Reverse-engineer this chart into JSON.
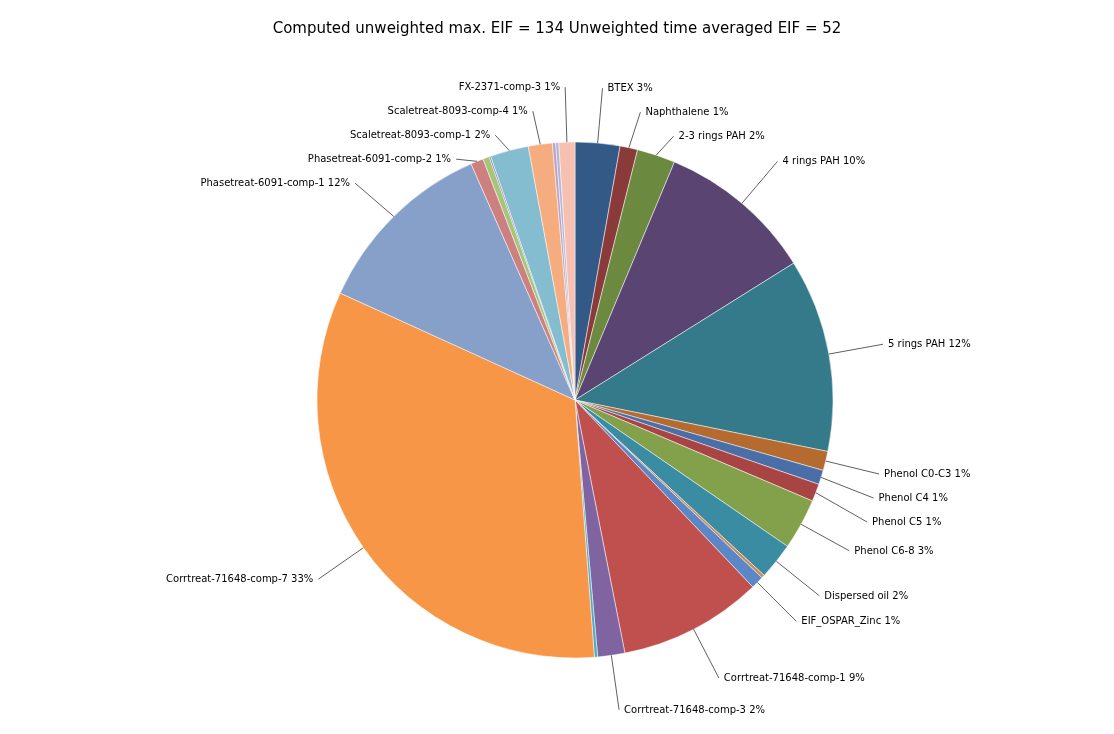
{
  "chart_data": {
    "type": "pie",
    "title": "Computed unweighted max. EIF = 134      Unweighted time averaged EIF = 52",
    "categories": [
      "BTEX",
      "Naphthalene",
      "2-3 rings PAH",
      "4 rings PAH",
      "5 rings PAH",
      "Phenol C0-C3",
      "Phenol C4",
      "Phenol C5",
      "Phenol C6-8",
      "Dispersed oil",
      null,
      "EIF_OSPAR_Zinc",
      "Corrtreat-71648-comp-1",
      "Corrtreat-71648-comp-3",
      null,
      "Corrtreat-71648-comp-7",
      "Phasetreat-6091-comp-1",
      "Phasetreat-6091-comp-2",
      null,
      null,
      "Scaletreat-8093-comp-1",
      "Scaletreat-8093-comp-4",
      null,
      null,
      "FX-2371-comp-3"
    ],
    "values": [
      2.8,
      1.1,
      2.4,
      9.8,
      12.1,
      1.2,
      0.9,
      1.1,
      3.2,
      2.3,
      0.2,
      0.8,
      9.0,
      1.7,
      0.2,
      33.0,
      11.6,
      0.8,
      0.4,
      0.1,
      2.4,
      1.5,
      0.2,
      0.2,
      1.0
    ],
    "value_labels": [
      "3%",
      "1%",
      "2%",
      "10%",
      "12%",
      "1%",
      "1%",
      "1%",
      "3%",
      "2%",
      null,
      "1%",
      "9%",
      "2%",
      null,
      "33%",
      "12%",
      "1%",
      null,
      null,
      "2%",
      "1%",
      null,
      null,
      "1%"
    ],
    "colors": [
      "#335a87",
      "#8b3a3a",
      "#6b8a3f",
      "#5a4472",
      "#347a8a",
      "#b56a30",
      "#4a6ea8",
      "#a84444",
      "#83a04a",
      "#3a8ca3",
      "#d08a5a",
      "#5b87c7",
      "#c0504d",
      "#8064a2",
      "#4bacc6",
      "#f79646",
      "#87a0c9",
      "#cc8080",
      "#a5c57a",
      "#9080b0",
      "#84bcd0",
      "#f5ad80",
      "#c0a0c0",
      "#b0b8d8",
      "#f8c0b0"
    ],
    "data_labels": false
  }
}
